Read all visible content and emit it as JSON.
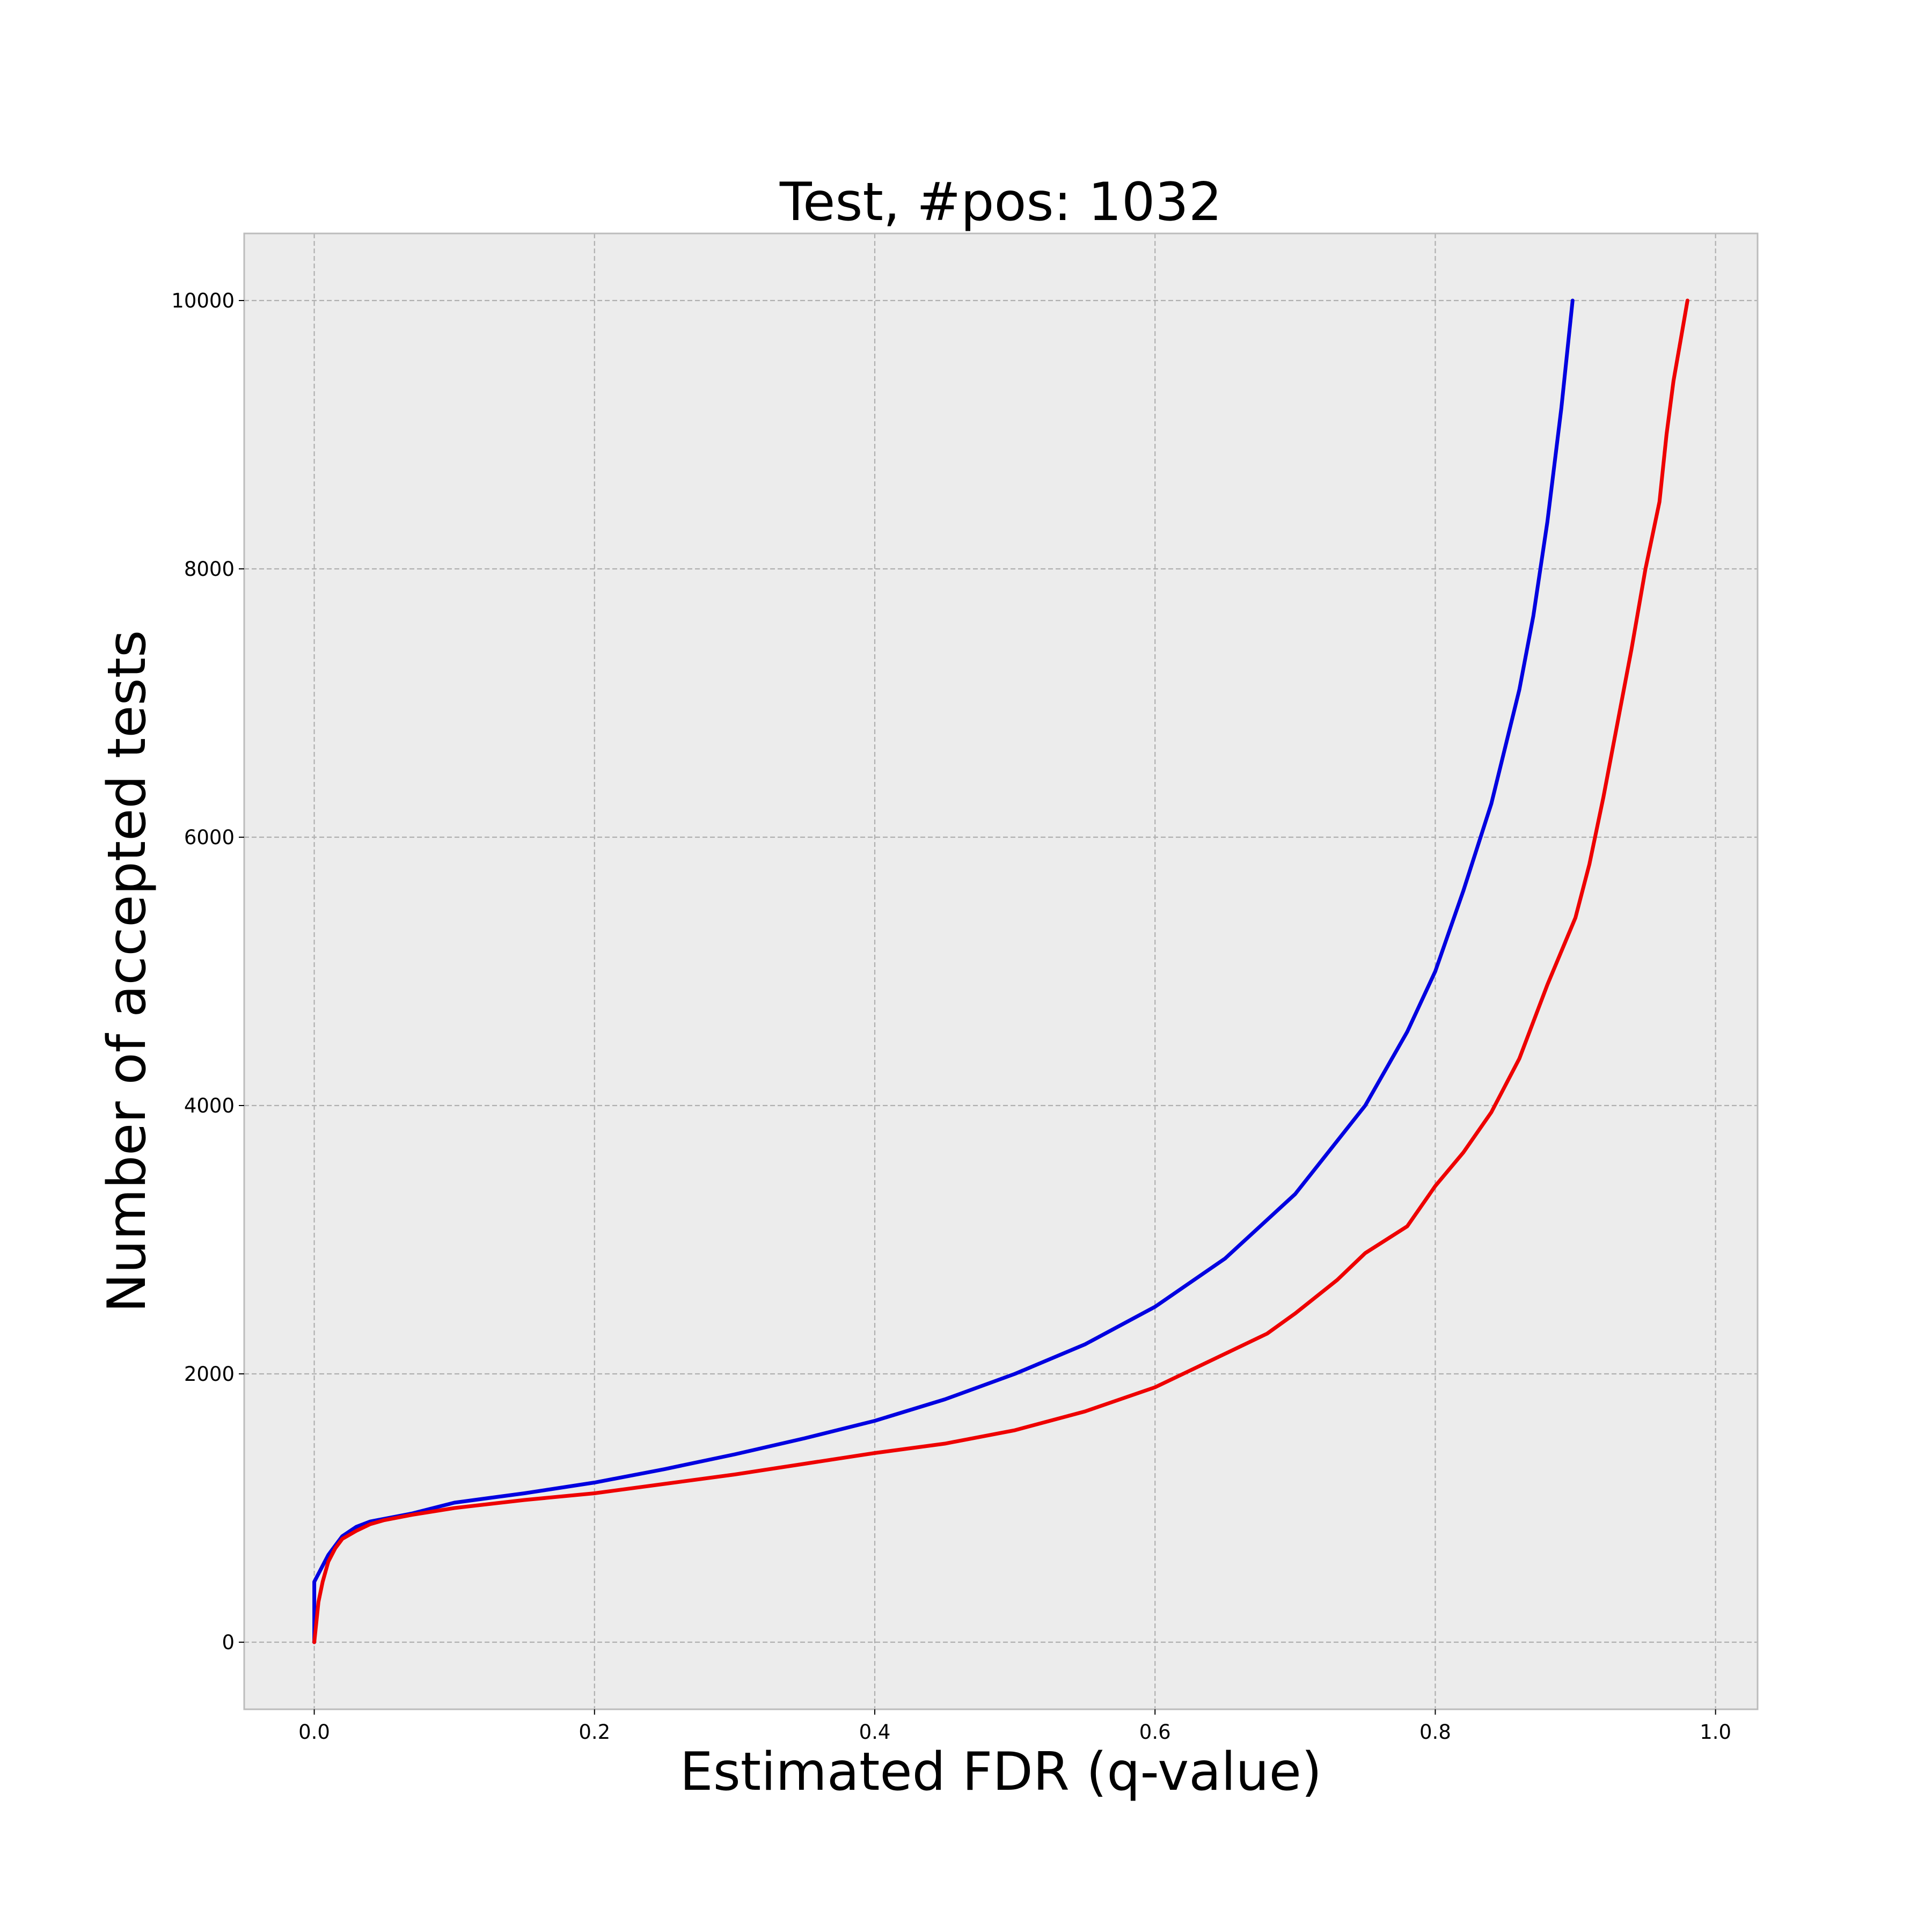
{
  "chart_data": {
    "type": "line",
    "title": "Test, #pos: 1032",
    "xlabel": "Estimated FDR (q-value)",
    "ylabel": "Number of accepted tests",
    "xlim": [
      -0.05,
      1.03
    ],
    "ylim": [
      -500,
      10500
    ],
    "xticks": [
      "0.0",
      "0.2",
      "0.4",
      "0.6",
      "0.8",
      "1.0"
    ],
    "xtick_values": [
      0.0,
      0.2,
      0.4,
      0.6,
      0.8,
      1.0
    ],
    "yticks": [
      "0",
      "2000",
      "4000",
      "6000",
      "8000",
      "10000"
    ],
    "ytick_values": [
      0,
      2000,
      4000,
      6000,
      8000,
      10000
    ],
    "grid": true,
    "background_color": "#ececec",
    "series": [
      {
        "color": "#0000e0",
        "x": [
          0.0,
          0.0,
          0.005,
          0.01,
          0.015,
          0.02,
          0.03,
          0.04,
          0.05,
          0.07,
          0.1,
          0.15,
          0.2,
          0.25,
          0.3,
          0.35,
          0.4,
          0.45,
          0.5,
          0.55,
          0.6,
          0.65,
          0.7,
          0.75,
          0.78,
          0.8,
          0.82,
          0.84,
          0.86,
          0.87,
          0.88,
          0.89,
          0.898
        ],
        "y": [
          0,
          450,
          550,
          650,
          720,
          790,
          860,
          900,
          920,
          960,
          1040,
          1110,
          1190,
          1290,
          1400,
          1520,
          1650,
          1810,
          2000,
          2220,
          2500,
          2860,
          3340,
          4000,
          4550,
          5000,
          5600,
          6250,
          7100,
          7650,
          8350,
          9200,
          10000
        ]
      },
      {
        "color": "#ee0000",
        "x": [
          0.0,
          0.003,
          0.006,
          0.01,
          0.015,
          0.02,
          0.03,
          0.04,
          0.05,
          0.07,
          0.1,
          0.15,
          0.2,
          0.25,
          0.3,
          0.35,
          0.4,
          0.45,
          0.5,
          0.55,
          0.6,
          0.63,
          0.65,
          0.68,
          0.7,
          0.73,
          0.75,
          0.78,
          0.8,
          0.82,
          0.84,
          0.86,
          0.88,
          0.9,
          0.91,
          0.92,
          0.93,
          0.94,
          0.95,
          0.96,
          0.965,
          0.97,
          0.975,
          0.98
        ],
        "y": [
          0,
          300,
          450,
          600,
          700,
          770,
          830,
          880,
          910,
          950,
          1000,
          1060,
          1110,
          1180,
          1250,
          1330,
          1410,
          1480,
          1580,
          1720,
          1900,
          2050,
          2150,
          2300,
          2450,
          2700,
          2900,
          3100,
          3400,
          3650,
          3950,
          4350,
          4900,
          5400,
          5800,
          6300,
          6850,
          7400,
          8000,
          8500,
          9000,
          9400,
          9700,
          10000
        ]
      }
    ]
  }
}
